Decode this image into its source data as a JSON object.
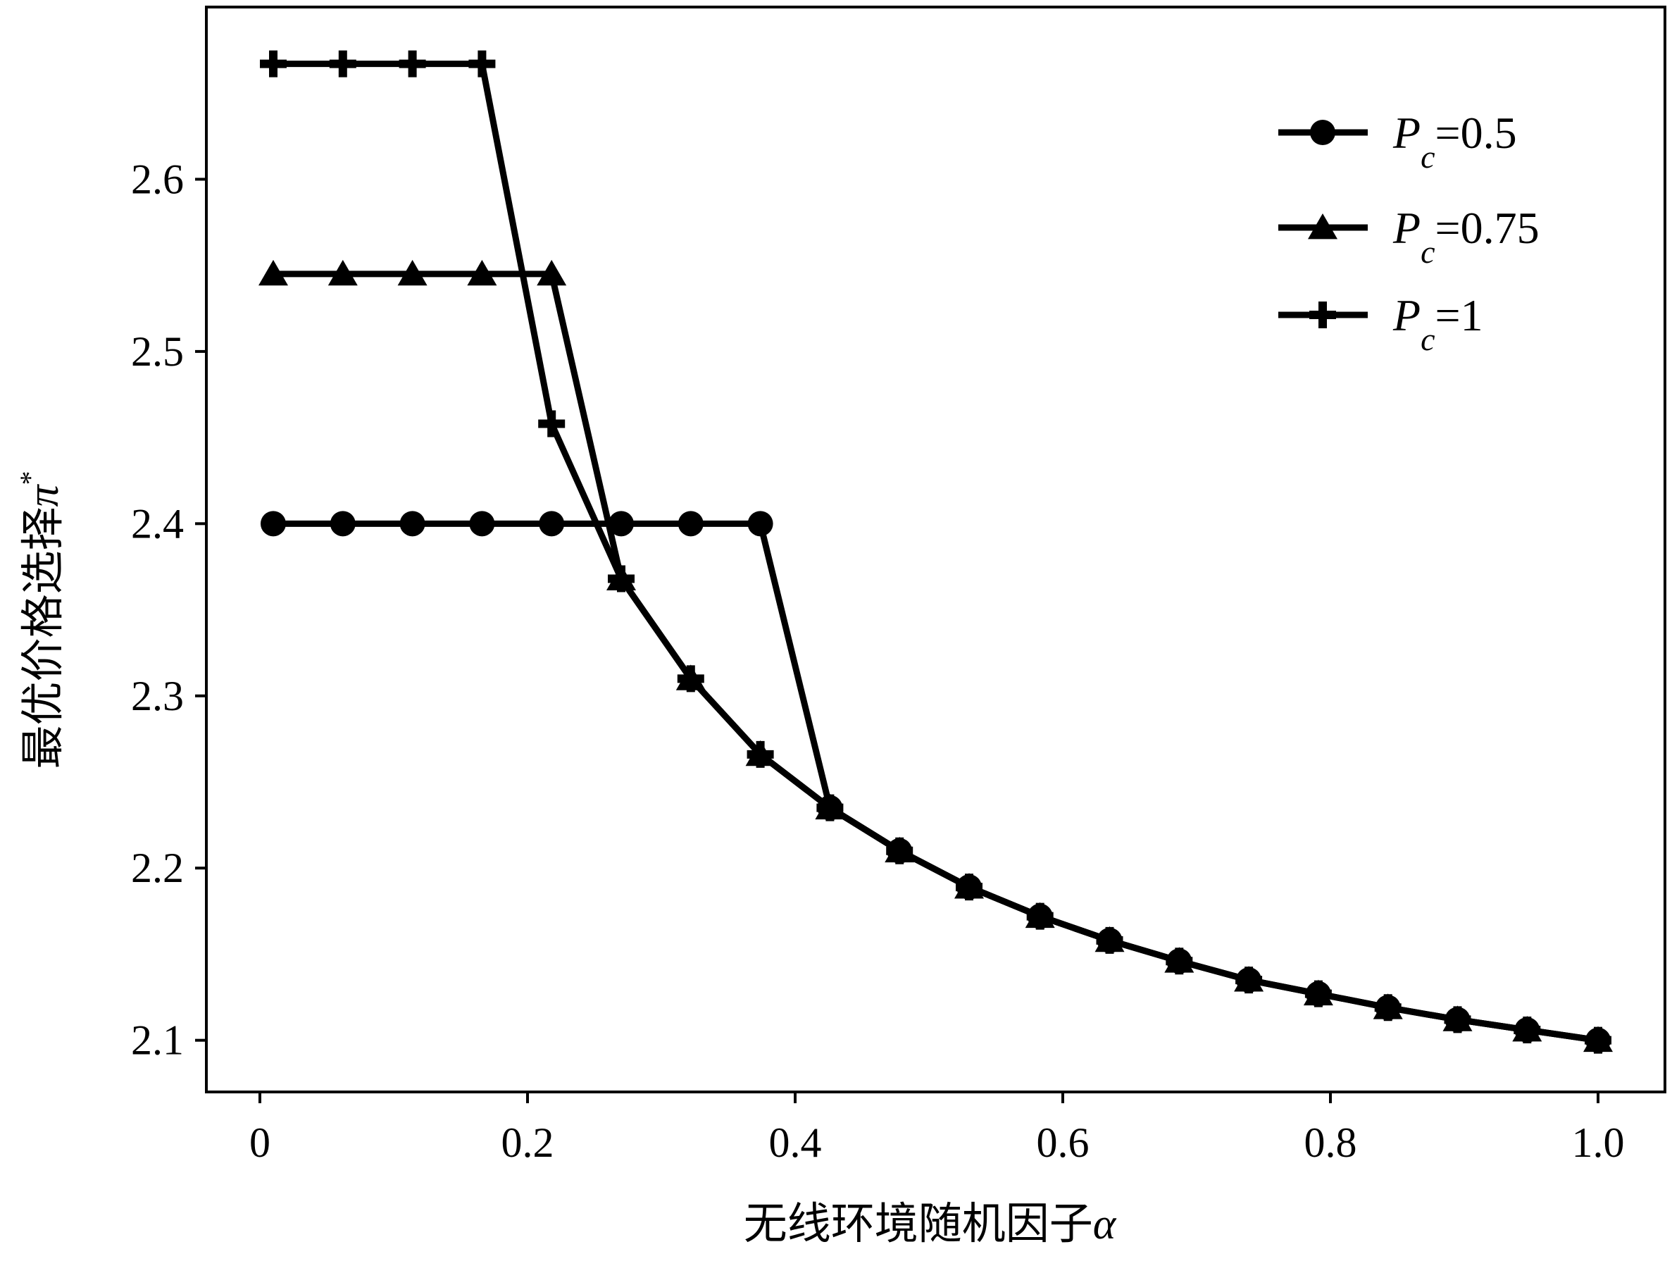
{
  "chart_data": {
    "type": "line",
    "title": "",
    "xlabel": {
      "text": "无线环境随机因子",
      "symbol": "α"
    },
    "ylabel": {
      "text": "最优价格选择",
      "symbol": "π",
      "superscript": "*"
    },
    "xlim": [
      -0.04,
      1.05
    ],
    "ylim": [
      2.07,
      2.7
    ],
    "xticks": [
      0,
      0.2,
      0.4,
      0.6,
      0.8,
      1.0
    ],
    "xtick_labels": [
      "0",
      "0.2",
      "0.4",
      "0.6",
      "0.8",
      "1.0"
    ],
    "yticks": [
      2.1,
      2.2,
      2.3,
      2.4,
      2.5,
      2.6
    ],
    "ytick_labels": [
      "2.1",
      "2.2",
      "2.3",
      "2.4",
      "2.5",
      "2.6"
    ],
    "grid": false,
    "legend_position": "top-right",
    "x": [
      0.01,
      0.062,
      0.114,
      0.166,
      0.218,
      0.27,
      0.322,
      0.374,
      0.426,
      0.478,
      0.53,
      0.583,
      0.635,
      0.687,
      0.739,
      0.791,
      0.843,
      0.895,
      0.947,
      1.0
    ],
    "series": [
      {
        "name": "P_c=0.5",
        "label_main": "P",
        "label_sub": "c",
        "label_value": "=0.5",
        "marker": "circle",
        "values": [
          2.4,
          2.4,
          2.4,
          2.4,
          2.4,
          2.4,
          2.4,
          2.4,
          2.235,
          2.21,
          2.189,
          2.172,
          2.158,
          2.146,
          2.135,
          2.127,
          2.119,
          2.112,
          2.106,
          2.1
        ]
      },
      {
        "name": "P_c=0.75",
        "label_main": "P",
        "label_sub": "c",
        "label_value": "=0.75",
        "marker": "triangle",
        "values": [
          2.545,
          2.545,
          2.545,
          2.545,
          2.545,
          2.368,
          2.31,
          2.266,
          2.235,
          2.21,
          2.189,
          2.172,
          2.158,
          2.146,
          2.135,
          2.127,
          2.119,
          2.112,
          2.106,
          2.1
        ]
      },
      {
        "name": "P_c=1",
        "label_main": "P",
        "label_sub": "c",
        "label_value": "=1",
        "marker": "plus",
        "values": [
          2.667,
          2.667,
          2.667,
          2.667,
          2.458,
          2.368,
          2.31,
          2.266,
          2.235,
          2.21,
          2.189,
          2.172,
          2.158,
          2.146,
          2.135,
          2.127,
          2.119,
          2.112,
          2.106,
          2.1
        ]
      }
    ]
  }
}
